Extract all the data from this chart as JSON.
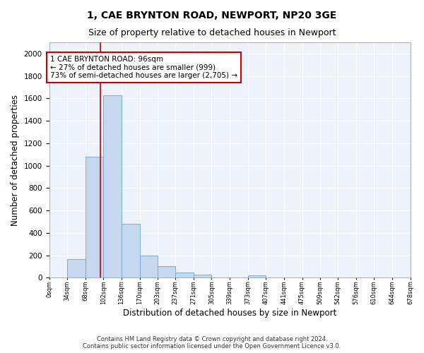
{
  "title": "1, CAE BRYNTON ROAD, NEWPORT, NP20 3GE",
  "subtitle": "Size of property relative to detached houses in Newport",
  "xlabel": "Distribution of detached houses by size in Newport",
  "ylabel": "Number of detached properties",
  "bar_color": "#c5d8f0",
  "bar_edge_color": "#7aadd4",
  "background_color": "#eef2fa",
  "grid_color": "#ffffff",
  "annotation_text": "1 CAE BRYNTON ROAD: 96sqm\n← 27% of detached houses are smaller (999)\n73% of semi-detached houses are larger (2,705) →",
  "property_line_x": 96,
  "property_line_color": "#cc0000",
  "annotation_box_color": "#cc0000",
  "bin_edges": [
    0,
    34,
    68,
    102,
    136,
    170,
    203,
    237,
    271,
    305,
    339,
    373,
    407,
    441,
    475,
    509,
    542,
    576,
    610,
    644,
    678
  ],
  "bin_labels": [
    "0sqm",
    "34sqm",
    "68sqm",
    "102sqm",
    "136sqm",
    "170sqm",
    "203sqm",
    "237sqm",
    "271sqm",
    "305sqm",
    "339sqm",
    "373sqm",
    "407sqm",
    "441sqm",
    "475sqm",
    "509sqm",
    "542sqm",
    "576sqm",
    "610sqm",
    "644sqm",
    "678sqm"
  ],
  "bar_heights": [
    0,
    165,
    1080,
    1630,
    480,
    200,
    100,
    45,
    28,
    0,
    0,
    20,
    0,
    0,
    0,
    0,
    0,
    0,
    0,
    0
  ],
  "ylim": [
    0,
    2100
  ],
  "yticks": [
    0,
    200,
    400,
    600,
    800,
    1000,
    1200,
    1400,
    1600,
    1800,
    2000
  ],
  "footnote": "Contains HM Land Registry data © Crown copyright and database right 2024.\nContains public sector information licensed under the Open Government Licence v3.0."
}
